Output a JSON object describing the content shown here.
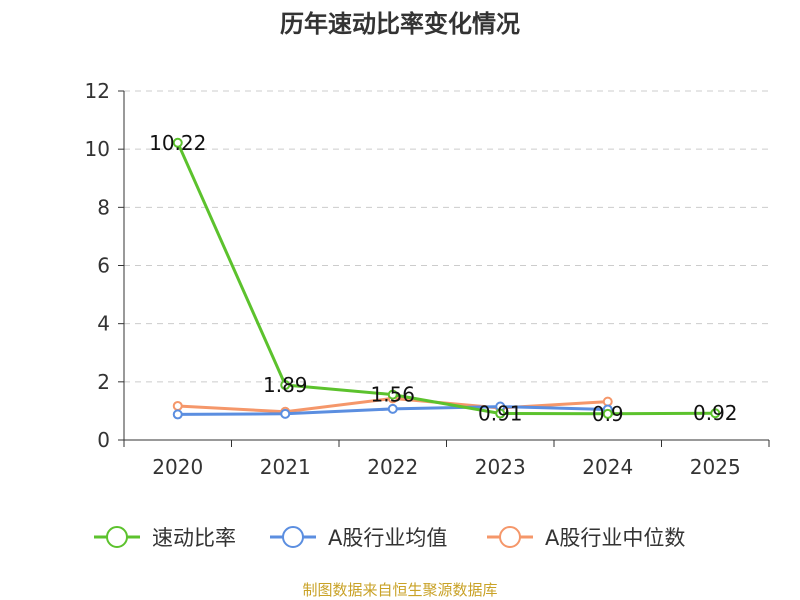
{
  "chart_data": {
    "type": "line",
    "title": "历年速动比率变化情况",
    "categories": [
      "2020",
      "2021",
      "2022",
      "2023",
      "2024",
      "2025"
    ],
    "ylim": [
      0,
      12
    ],
    "yticks": [
      "0",
      "2",
      "4",
      "6",
      "8",
      "10",
      "12"
    ],
    "grid": true,
    "legend_position": "bottom",
    "series": [
      {
        "name": "速动比率",
        "color": "#5cc22d",
        "values": [
          10.22,
          1.89,
          1.56,
          0.91,
          0.9,
          0.92
        ],
        "labels": [
          "10.22",
          "1.89",
          "1.56",
          "0.91",
          "0.9",
          "0.92"
        ]
      },
      {
        "name": "A股行业均值",
        "color": "#5b8ee0",
        "values": [
          0.88,
          0.9,
          1.07,
          1.15,
          1.05,
          null
        ]
      },
      {
        "name": "A股行业中位数",
        "color": "#f5976a",
        "values": [
          1.17,
          0.97,
          1.43,
          1.1,
          1.32,
          null
        ]
      }
    ]
  },
  "source": "制图数据来自恒生聚源数据库"
}
